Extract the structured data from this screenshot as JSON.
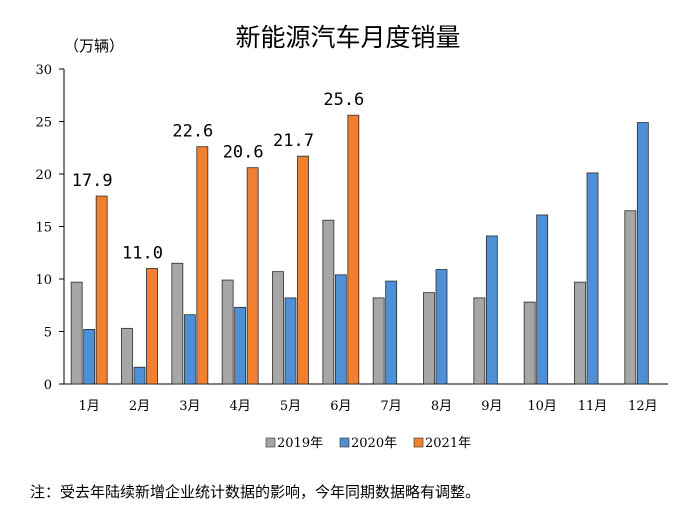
{
  "chart_data": {
    "type": "bar",
    "title": "新能源汽车月度销量",
    "unit_label": "（万辆）",
    "categories": [
      "1月",
      "2月",
      "3月",
      "4月",
      "5月",
      "6月",
      "7月",
      "8月",
      "9月",
      "10月",
      "11月",
      "12月"
    ],
    "series": [
      {
        "name": "2019年",
        "color": "#a6a6a6",
        "values": [
          9.7,
          5.3,
          11.5,
          9.9,
          10.7,
          15.6,
          8.2,
          8.7,
          8.2,
          7.8,
          9.7,
          16.5
        ]
      },
      {
        "name": "2020年",
        "color": "#4f8fd6",
        "values": [
          5.2,
          1.6,
          6.6,
          7.3,
          8.2,
          10.4,
          9.8,
          10.9,
          14.1,
          16.1,
          20.1,
          24.9
        ]
      },
      {
        "name": "2021年",
        "color": "#f07f2f",
        "values": [
          17.9,
          11.0,
          22.6,
          20.6,
          21.7,
          25.6,
          null,
          null,
          null,
          null,
          null,
          null
        ]
      }
    ],
    "data_labels": [
      "17.9",
      "11.0",
      "22.6",
      "20.6",
      "21.7",
      "25.6"
    ],
    "ylim": [
      0,
      30
    ],
    "yticks": [
      0,
      5,
      10,
      15,
      20,
      25,
      30
    ],
    "grid": false,
    "legend_position": "bottom"
  },
  "note": "注：受去年陆续新增企业统计数据的影响，今年同期数据略有调整。"
}
